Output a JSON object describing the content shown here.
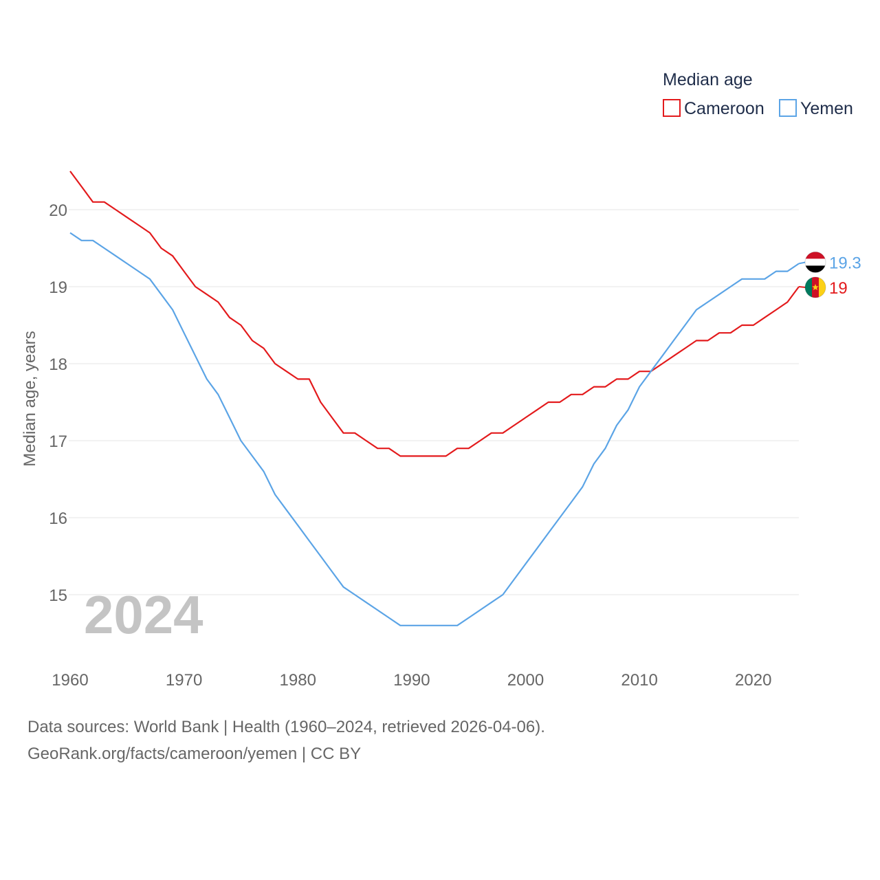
{
  "chart_data": {
    "type": "line",
    "legend_title": "Median age",
    "ylabel": "Median age, years",
    "xlabel": "",
    "ylim": [
      14.15,
      21.0
    ],
    "xlim": [
      1960,
      2024
    ],
    "grid": true,
    "legend_position": "top-right",
    "y_ticks": [
      15,
      16,
      17,
      18,
      19,
      20
    ],
    "x_ticks": [
      1960,
      1970,
      1980,
      1990,
      2000,
      2010,
      2020
    ],
    "current_year_label": "2024",
    "x": [
      1960,
      1961,
      1962,
      1963,
      1964,
      1965,
      1966,
      1967,
      1968,
      1969,
      1970,
      1971,
      1972,
      1973,
      1974,
      1975,
      1976,
      1977,
      1978,
      1979,
      1980,
      1981,
      1982,
      1983,
      1984,
      1985,
      1986,
      1987,
      1988,
      1989,
      1990,
      1991,
      1992,
      1993,
      1994,
      1995,
      1996,
      1997,
      1998,
      1999,
      2000,
      2001,
      2002,
      2003,
      2004,
      2005,
      2006,
      2007,
      2008,
      2009,
      2010,
      2011,
      2012,
      2013,
      2014,
      2015,
      2016,
      2017,
      2018,
      2019,
      2020,
      2021,
      2022,
      2023,
      2024
    ],
    "series": [
      {
        "name": "Cameroon",
        "color": "#e31a1c",
        "flag": "cameroon-flag-icon",
        "end_label": "19",
        "values": [
          20.5,
          20.3,
          20.1,
          20.1,
          20.0,
          19.9,
          19.8,
          19.7,
          19.5,
          19.4,
          19.2,
          19.0,
          18.9,
          18.8,
          18.6,
          18.5,
          18.3,
          18.2,
          18.0,
          17.9,
          17.8,
          17.8,
          17.5,
          17.3,
          17.1,
          17.1,
          17.0,
          16.9,
          16.9,
          16.8,
          16.8,
          16.8,
          16.8,
          16.8,
          16.9,
          16.9,
          17.0,
          17.1,
          17.1,
          17.2,
          17.3,
          17.4,
          17.5,
          17.5,
          17.6,
          17.6,
          17.7,
          17.7,
          17.8,
          17.8,
          17.9,
          17.9,
          18.0,
          18.1,
          18.2,
          18.3,
          18.3,
          18.4,
          18.4,
          18.5,
          18.5,
          18.6,
          18.7,
          18.8,
          19.0
        ]
      },
      {
        "name": "Yemen",
        "color": "#5ba4e6",
        "flag": "yemen-flag-icon",
        "end_label": "19.3",
        "values": [
          19.7,
          19.6,
          19.6,
          19.5,
          19.4,
          19.3,
          19.2,
          19.1,
          18.9,
          18.7,
          18.4,
          18.1,
          17.8,
          17.6,
          17.3,
          17.0,
          16.8,
          16.6,
          16.3,
          16.1,
          15.9,
          15.7,
          15.5,
          15.3,
          15.1,
          15.0,
          14.9,
          14.8,
          14.7,
          14.6,
          14.6,
          14.6,
          14.6,
          14.6,
          14.6,
          14.7,
          14.8,
          14.9,
          15.0,
          15.2,
          15.4,
          15.6,
          15.8,
          16.0,
          16.2,
          16.4,
          16.7,
          16.9,
          17.2,
          17.4,
          17.7,
          17.9,
          18.1,
          18.3,
          18.5,
          18.7,
          18.8,
          18.9,
          19.0,
          19.1,
          19.1,
          19.1,
          19.2,
          19.2,
          19.3
        ]
      }
    ]
  },
  "footer": {
    "line1": "Data sources: World Bank | Health (1960–2024, retrieved 2026-04-06).",
    "line2": "GeoRank.org/facts/cameroon/yemen | CC BY"
  }
}
